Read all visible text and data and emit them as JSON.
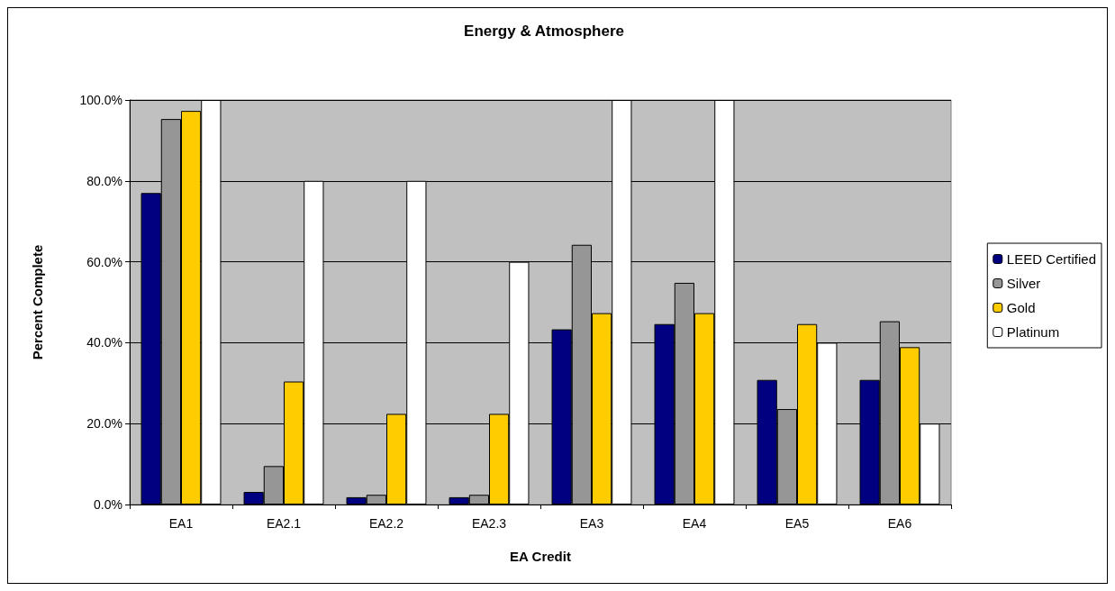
{
  "chart_data": {
    "type": "bar",
    "title": "Energy & Atmosphere",
    "xlabel": "EA Credit",
    "ylabel": "Percent Complete",
    "categories": [
      "EA1",
      "EA2.1",
      "EA2.2",
      "EA2.3",
      "EA3",
      "EA4",
      "EA5",
      "EA6"
    ],
    "series": [
      {
        "name": "LEED Certified",
        "color": "#000080",
        "values": [
          77.0,
          3.1,
          1.8,
          1.8,
          43.3,
          44.6,
          30.8,
          30.8
        ]
      },
      {
        "name": "Silver",
        "color": "#969696",
        "values": [
          95.3,
          9.5,
          2.4,
          2.4,
          64.2,
          54.8,
          23.6,
          45.3
        ]
      },
      {
        "name": "Gold",
        "color": "#ffcc00",
        "values": [
          97.3,
          30.4,
          22.4,
          22.4,
          47.3,
          47.3,
          44.6,
          38.9
        ]
      },
      {
        "name": "Platinum",
        "color": "#ffffff",
        "values": [
          100,
          80,
          80,
          60,
          100,
          100,
          40,
          20
        ]
      }
    ],
    "ylim": [
      0,
      100
    ],
    "yticks": [
      {
        "value": 0,
        "label": "0.0%"
      },
      {
        "value": 20,
        "label": "20.0%"
      },
      {
        "value": 40,
        "label": "40.0%"
      },
      {
        "value": 60,
        "label": "60.0%"
      },
      {
        "value": 80,
        "label": "80.0%"
      },
      {
        "value": 100,
        "label": "100.0%"
      }
    ],
    "grid": "y",
    "legend": "right"
  }
}
